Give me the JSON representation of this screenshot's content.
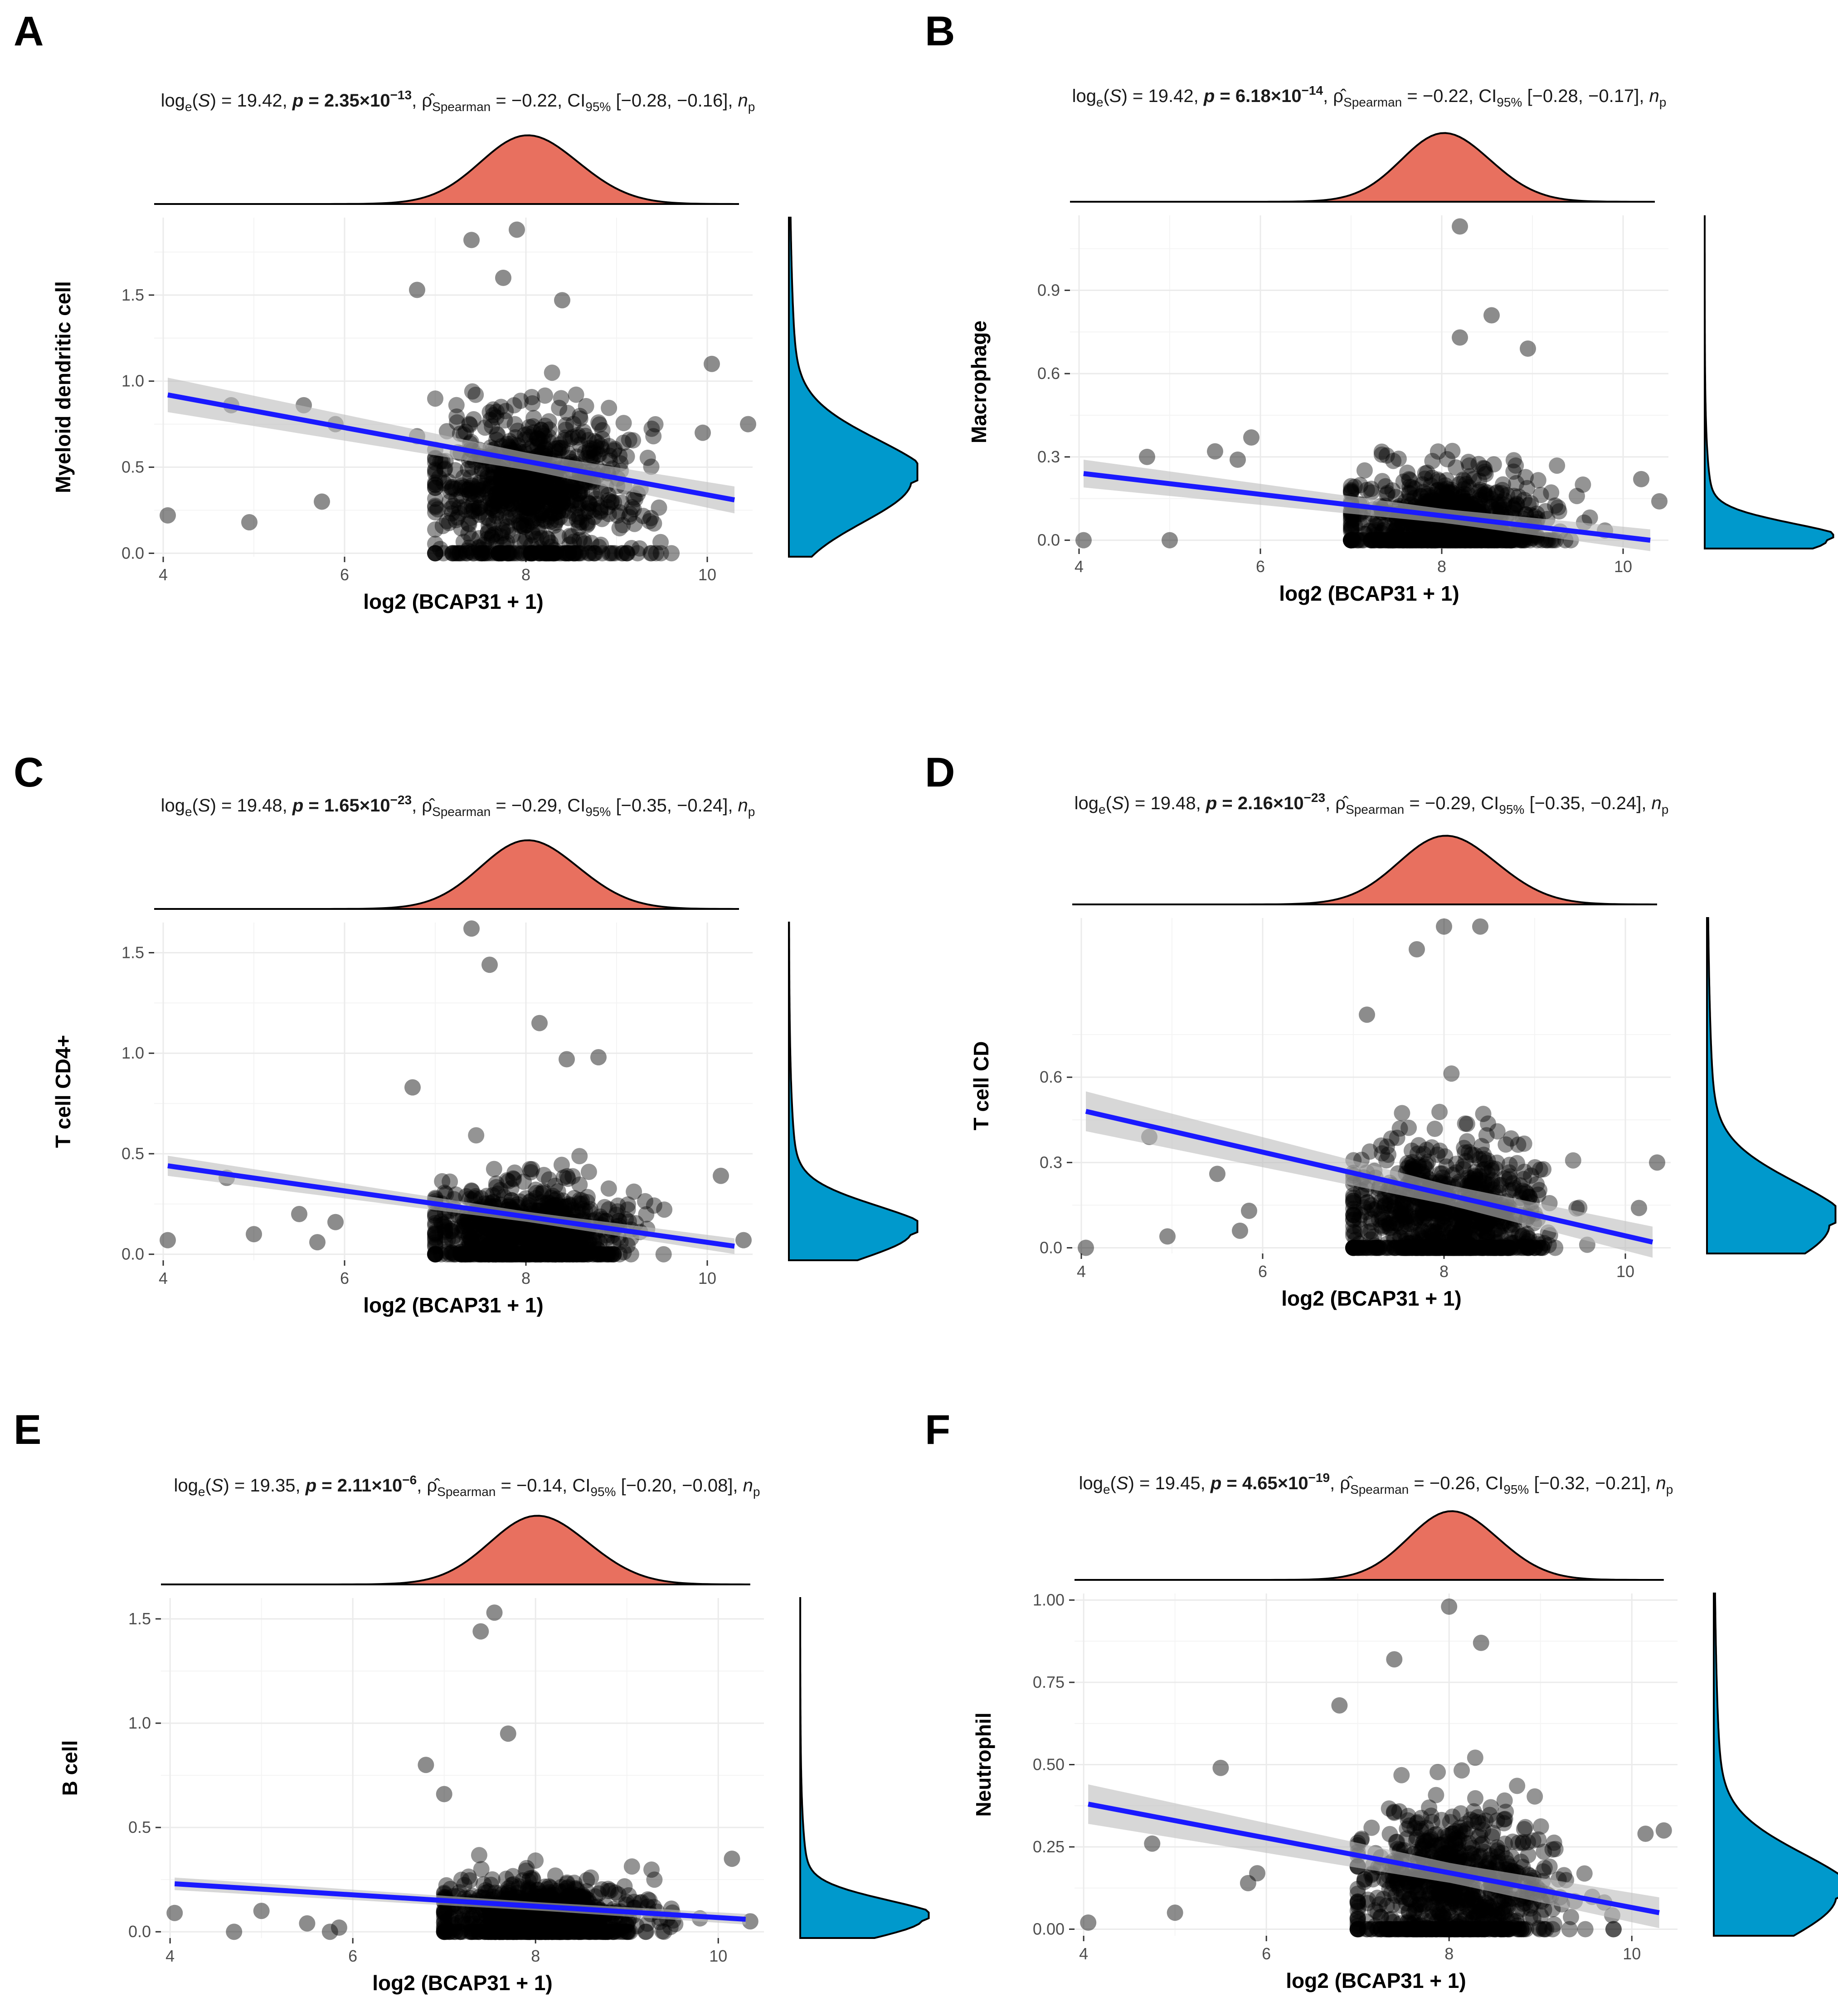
{
  "figure": {
    "x_axis_label": "log2 (BCAP31 + 1)",
    "colors": {
      "points": "#000000",
      "fit_line": "#1a1aff",
      "confidence_band": "#bdbdbd",
      "x_density_fill": "#e8705f",
      "y_density_fill": "#0099cc",
      "grid": "#ebebeb"
    }
  },
  "chart_data": [
    {
      "panel": "A",
      "type": "scatter",
      "ylabel": "Myeloid dendritic cell",
      "title": "log_e(S) = 19.42, p = 2.35×10^−13, ρ̂_Spearman = −0.22, CI_95% [−0.28, −0.16], n_p",
      "stat": {
        "logS": "19.42",
        "p_mant": "2.35",
        "p_exp": "−13",
        "rho": "−0.22",
        "ci": "[−0.28, −0.16]"
      },
      "xlim": [
        3.9,
        10.5
      ],
      "ylim": [
        -0.02,
        1.95
      ],
      "x_ticks": [
        4,
        6,
        8,
        10
      ],
      "y_ticks": [
        0.0,
        0.5,
        1.0,
        1.5
      ],
      "y_tick_labels": [
        "0.0",
        "0.5",
        "1.0",
        "1.5"
      ],
      "fit": {
        "x": [
          4.05,
          10.3
        ],
        "y": [
          0.92,
          0.31
        ],
        "ci_start": 0.1,
        "ci_end": 0.05
      },
      "cluster": {
        "x_center": 8.05,
        "x_sd": 0.55,
        "y_mode": 0.4,
        "y_spread": 0.25,
        "y_min": 0.0,
        "y_max": 1.45,
        "n": 850
      },
      "outliers": [
        [
          4.05,
          0.22
        ],
        [
          4.95,
          0.18
        ],
        [
          5.75,
          0.3
        ],
        [
          4.75,
          0.86
        ],
        [
          5.55,
          0.86
        ],
        [
          5.9,
          0.75
        ],
        [
          6.8,
          1.53
        ],
        [
          6.8,
          0.68
        ],
        [
          7.4,
          1.82
        ],
        [
          7.9,
          1.88
        ],
        [
          7.75,
          1.6
        ],
        [
          8.4,
          1.47
        ],
        [
          10.45,
          0.75
        ],
        [
          10.05,
          1.1
        ],
        [
          9.95,
          0.7
        ]
      ],
      "x_density_peak": 8.1,
      "x_density_sd": 0.55,
      "y_density_peak": 0.42,
      "y_density_sd": 0.24
    },
    {
      "panel": "B",
      "type": "scatter",
      "ylabel": "Macrophage",
      "title": "log_e(S) = 19.42, p = 6.18×10^−14, ρ̂_Spearman = −0.22, CI_95% [−0.28, −0.17], n_p",
      "stat": {
        "logS": "19.42",
        "p_mant": "6.18",
        "p_exp": "−14",
        "rho": "−0.22",
        "ci": "[−0.28, −0.17]"
      },
      "xlim": [
        3.9,
        10.5
      ],
      "ylim": [
        -0.03,
        1.17
      ],
      "x_ticks": [
        4,
        6,
        8,
        10
      ],
      "y_ticks": [
        0.0,
        0.3,
        0.6,
        0.9
      ],
      "y_tick_labels": [
        "0.0",
        "0.3",
        "0.6",
        "0.9"
      ],
      "fit": {
        "x": [
          4.05,
          10.3
        ],
        "y": [
          0.24,
          0.0
        ],
        "ci_start": 0.05,
        "ci_end": 0.025
      },
      "cluster": {
        "x_center": 8.05,
        "x_sd": 0.55,
        "y_mode": 0.06,
        "y_spread": 0.1,
        "y_min": 0.0,
        "y_max": 0.5,
        "n": 850
      },
      "outliers": [
        [
          4.05,
          0.0
        ],
        [
          5.0,
          0.0
        ],
        [
          4.75,
          0.3
        ],
        [
          5.5,
          0.32
        ],
        [
          5.75,
          0.29
        ],
        [
          5.9,
          0.37
        ],
        [
          8.2,
          1.13
        ],
        [
          8.55,
          0.81
        ],
        [
          8.2,
          0.73
        ],
        [
          8.95,
          0.69
        ],
        [
          10.4,
          0.14
        ],
        [
          10.2,
          0.22
        ]
      ],
      "x_density_peak": 8.1,
      "x_density_sd": 0.5,
      "y_density_peak": 0.0,
      "y_density_sd": 0.06
    },
    {
      "panel": "C",
      "type": "scatter",
      "ylabel": "T cell CD4+",
      "title": "log_e(S) = 19.48, p = 1.65×10^−23, ρ̂_Spearman = −0.29, CI_95% [−0.35, −0.24], n_p",
      "stat": {
        "logS": "19.48",
        "p_mant": "1.65",
        "p_exp": "−23",
        "rho": "−0.29",
        "ci": "[−0.35, −0.24]"
      },
      "xlim": [
        3.9,
        10.5
      ],
      "ylim": [
        -0.03,
        1.65
      ],
      "x_ticks": [
        4,
        6,
        8,
        10
      ],
      "y_ticks": [
        0.0,
        0.5,
        1.0,
        1.5
      ],
      "y_tick_labels": [
        "0.0",
        "0.5",
        "1.0",
        "1.5"
      ],
      "fit": {
        "x": [
          4.05,
          10.3
        ],
        "y": [
          0.44,
          0.04
        ],
        "ci_start": 0.05,
        "ci_end": 0.025
      },
      "cluster": {
        "x_center": 8.05,
        "x_sd": 0.55,
        "y_mode": 0.12,
        "y_spread": 0.13,
        "y_min": 0.0,
        "y_max": 0.65,
        "n": 850
      },
      "outliers": [
        [
          4.05,
          0.07
        ],
        [
          5.0,
          0.1
        ],
        [
          5.7,
          0.06
        ],
        [
          5.9,
          0.16
        ],
        [
          5.5,
          0.2
        ],
        [
          4.7,
          0.38
        ],
        [
          6.75,
          0.83
        ],
        [
          7.4,
          1.62
        ],
        [
          7.6,
          1.44
        ],
        [
          8.15,
          1.15
        ],
        [
          8.45,
          0.97
        ],
        [
          8.8,
          0.98
        ],
        [
          10.4,
          0.07
        ],
        [
          10.15,
          0.39
        ]
      ],
      "x_density_peak": 8.1,
      "x_density_sd": 0.55,
      "y_density_peak": 0.11,
      "y_density_sd": 0.13
    },
    {
      "panel": "D",
      "type": "scatter",
      "ylabel": "T cell CD",
      "title": "log_e(S) = 19.48, p = 2.16×10^−23, ρ̂_Spearman = −0.29, CI_95% [−0.35, −0.24], n_p",
      "stat": {
        "logS": "19.48",
        "p_mant": "2.16",
        "p_exp": "−23",
        "rho": "−0.29",
        "ci": "[−0.35, −0.24]"
      },
      "xlim": [
        3.9,
        10.5
      ],
      "ylim": [
        -0.02,
        1.16
      ],
      "x_ticks": [
        4,
        6,
        8,
        10
      ],
      "y_ticks": [
        0.0,
        0.3,
        0.6
      ],
      "y_tick_labels": [
        "0.0",
        "0.3",
        "0.6"
      ],
      "fit": {
        "x": [
          4.05,
          10.3
        ],
        "y": [
          0.48,
          0.02
        ],
        "ci_start": 0.07,
        "ci_end": 0.035
      },
      "cluster": {
        "x_center": 8.05,
        "x_sd": 0.55,
        "y_mode": 0.1,
        "y_spread": 0.16,
        "y_min": 0.0,
        "y_max": 0.8,
        "n": 850
      },
      "outliers": [
        [
          4.05,
          0.0
        ],
        [
          4.95,
          0.04
        ],
        [
          4.75,
          0.39
        ],
        [
          5.5,
          0.26
        ],
        [
          5.85,
          0.13
        ],
        [
          5.75,
          0.06
        ],
        [
          7.15,
          0.82
        ],
        [
          7.7,
          1.05
        ],
        [
          8.0,
          1.13
        ],
        [
          8.4,
          1.13
        ],
        [
          10.35,
          0.3
        ],
        [
          10.15,
          0.14
        ]
      ],
      "x_density_peak": 8.1,
      "x_density_sd": 0.55,
      "y_density_peak": 0.08,
      "y_density_sd": 0.15
    },
    {
      "panel": "E",
      "type": "scatter",
      "ylabel": "B cell",
      "title": "log_e(S) = 19.35, p = 2.11×10^−6, ρ̂_Spearman = −0.14, CI_95% [−0.20, −0.08], n_p",
      "stat": {
        "logS": "19.35",
        "p_mant": "2.11",
        "p_exp": "−6",
        "rho": "−0.14",
        "ci": "[−0.20, −0.08]"
      },
      "xlim": [
        3.9,
        10.5
      ],
      "ylim": [
        -0.03,
        1.6
      ],
      "x_ticks": [
        4,
        6,
        8,
        10
      ],
      "y_ticks": [
        0.0,
        0.5,
        1.0,
        1.5
      ],
      "y_tick_labels": [
        "0.0",
        "0.5",
        "1.0",
        "1.5"
      ],
      "fit": {
        "x": [
          4.05,
          10.3
        ],
        "y": [
          0.23,
          0.06
        ],
        "ci_start": 0.03,
        "ci_end": 0.02
      },
      "cluster": {
        "x_center": 8.05,
        "x_sd": 0.55,
        "y_mode": 0.08,
        "y_spread": 0.1,
        "y_min": 0.0,
        "y_max": 0.55,
        "n": 850
      },
      "outliers": [
        [
          4.05,
          0.09
        ],
        [
          4.7,
          0.0
        ],
        [
          5.0,
          0.1
        ],
        [
          5.5,
          0.04
        ],
        [
          5.75,
          0.0
        ],
        [
          5.85,
          0.02
        ],
        [
          6.8,
          0.8
        ],
        [
          7.0,
          0.66
        ],
        [
          7.4,
          1.44
        ],
        [
          7.55,
          1.53
        ],
        [
          7.7,
          0.95
        ],
        [
          10.15,
          0.35
        ],
        [
          10.35,
          0.05
        ]
      ],
      "x_density_peak": 8.1,
      "x_density_sd": 0.55,
      "y_density_peak": 0.06,
      "y_density_sd": 0.09
    },
    {
      "panel": "F",
      "type": "scatter",
      "ylabel": "Neutrophil",
      "title": "log_e(S) = 19.45, p = 4.65×10^−19, ρ̂_Spearman = −0.26, CI_95% [−0.32, −0.21], n_p",
      "stat": {
        "logS": "19.45",
        "p_mant": "4.65",
        "p_exp": "−19",
        "rho": "−0.26",
        "ci": "[−0.32, −0.21]"
      },
      "xlim": [
        3.9,
        10.5
      ],
      "ylim": [
        -0.02,
        1.02
      ],
      "x_ticks": [
        4,
        6,
        8,
        10
      ],
      "y_ticks": [
        0.0,
        0.25,
        0.5,
        0.75,
        1.0
      ],
      "y_tick_labels": [
        "0.00",
        "0.25",
        "0.50",
        "0.75",
        "1.00"
      ],
      "fit": {
        "x": [
          4.05,
          10.3
        ],
        "y": [
          0.38,
          0.05
        ],
        "ci_start": 0.06,
        "ci_end": 0.03
      },
      "cluster": {
        "x_center": 8.05,
        "x_sd": 0.55,
        "y_mode": 0.12,
        "y_spread": 0.14,
        "y_min": 0.0,
        "y_max": 0.6,
        "n": 850
      },
      "outliers": [
        [
          4.05,
          0.02
        ],
        [
          4.75,
          0.26
        ],
        [
          5.0,
          0.05
        ],
        [
          5.5,
          0.49
        ],
        [
          5.8,
          0.14
        ],
        [
          5.9,
          0.17
        ],
        [
          6.8,
          0.68
        ],
        [
          7.4,
          0.82
        ],
        [
          8.0,
          0.98
        ],
        [
          8.35,
          0.87
        ],
        [
          10.35,
          0.3
        ],
        [
          10.15,
          0.29
        ]
      ],
      "x_density_peak": 8.1,
      "x_density_sd": 0.5,
      "y_density_peak": 0.1,
      "y_density_sd": 0.13
    }
  ]
}
